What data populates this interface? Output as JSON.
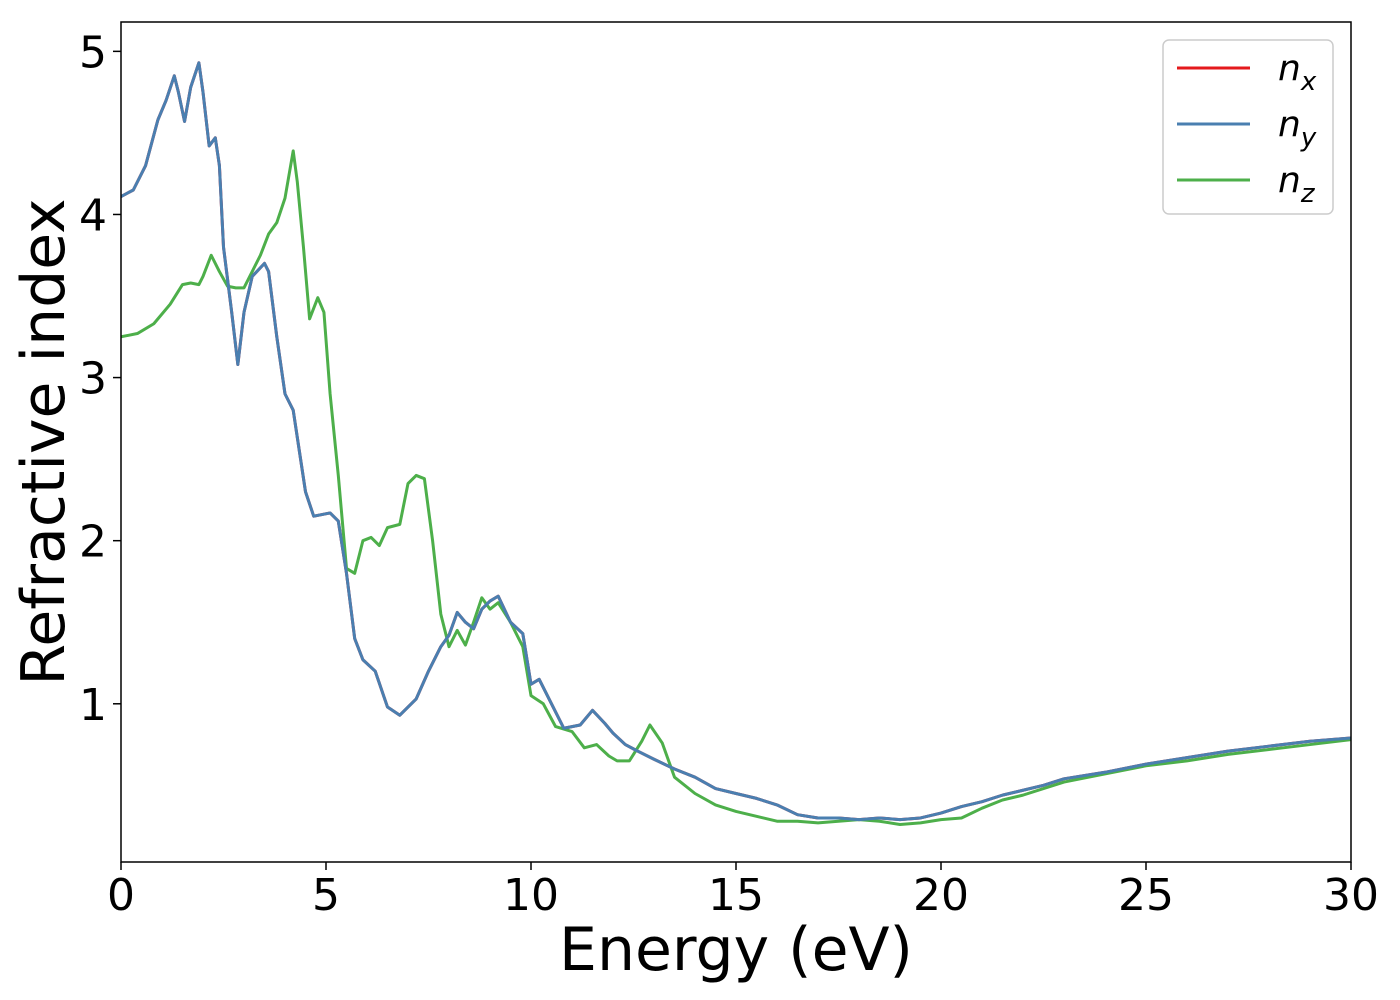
{
  "chart_data": {
    "type": "line",
    "xlabel": "Energy (eV)",
    "ylabel": "Refractive index",
    "xlim": [
      0,
      30
    ],
    "ylim": [
      0.03,
      5.18
    ],
    "xticks": [
      0,
      5,
      10,
      15,
      20,
      25,
      30
    ],
    "yticks": [
      1,
      2,
      3,
      4,
      5
    ],
    "grid": false,
    "legend_position": "top-right",
    "series": [
      {
        "name": "n_x",
        "name_base": "n",
        "name_sub": "x",
        "color": "#e41a1c",
        "x": [
          0,
          0.3,
          0.6,
          0.9,
          1.1,
          1.3,
          1.4,
          1.55,
          1.7,
          1.9,
          2.0,
          2.15,
          2.3,
          2.4,
          2.5,
          2.7,
          2.85,
          3.0,
          3.2,
          3.5,
          3.6,
          3.8,
          4.0,
          4.2,
          4.35,
          4.5,
          4.7,
          4.9,
          5.1,
          5.3,
          5.5,
          5.7,
          5.9,
          6.2,
          6.5,
          6.8,
          7.2,
          7.5,
          7.8,
          8.0,
          8.2,
          8.4,
          8.6,
          8.8,
          9.0,
          9.2,
          9.5,
          9.8,
          10.0,
          10.2,
          10.5,
          10.8,
          11.0,
          11.2,
          11.5,
          11.8,
          12.0,
          12.3,
          12.6,
          13.0,
          13.5,
          14.0,
          14.5,
          15.0,
          15.5,
          16.0,
          16.5,
          17.0,
          17.5,
          18.0,
          18.5,
          19.0,
          19.5,
          20.0,
          20.5,
          21.0,
          21.5,
          22.0,
          22.5,
          23.0,
          24.0,
          25.0,
          26.0,
          27.0,
          28.0,
          29.0,
          30.0
        ],
        "values": [
          4.11,
          4.15,
          4.3,
          4.58,
          4.7,
          4.85,
          4.75,
          4.57,
          4.78,
          4.93,
          4.75,
          4.42,
          4.47,
          4.3,
          3.8,
          3.4,
          3.08,
          3.4,
          3.62,
          3.7,
          3.65,
          3.25,
          2.9,
          2.8,
          2.55,
          2.3,
          2.15,
          2.16,
          2.17,
          2.12,
          1.8,
          1.4,
          1.27,
          1.2,
          0.98,
          0.93,
          1.03,
          1.2,
          1.35,
          1.42,
          1.56,
          1.5,
          1.46,
          1.58,
          1.63,
          1.66,
          1.5,
          1.43,
          1.12,
          1.15,
          1.0,
          0.85,
          0.86,
          0.87,
          0.96,
          0.88,
          0.82,
          0.75,
          0.71,
          0.66,
          0.6,
          0.55,
          0.48,
          0.45,
          0.42,
          0.38,
          0.32,
          0.3,
          0.3,
          0.29,
          0.3,
          0.29,
          0.3,
          0.33,
          0.37,
          0.4,
          0.44,
          0.47,
          0.5,
          0.54,
          0.58,
          0.63,
          0.67,
          0.71,
          0.74,
          0.77,
          0.79
        ]
      },
      {
        "name": "n_y",
        "name_base": "n",
        "name_sub": "y",
        "color": "#4a7fb0",
        "x": [
          0,
          0.3,
          0.6,
          0.9,
          1.1,
          1.3,
          1.4,
          1.55,
          1.7,
          1.9,
          2.0,
          2.15,
          2.3,
          2.4,
          2.5,
          2.7,
          2.85,
          3.0,
          3.2,
          3.5,
          3.6,
          3.8,
          4.0,
          4.2,
          4.35,
          4.5,
          4.7,
          4.9,
          5.1,
          5.3,
          5.5,
          5.7,
          5.9,
          6.2,
          6.5,
          6.8,
          7.2,
          7.5,
          7.8,
          8.0,
          8.2,
          8.4,
          8.6,
          8.8,
          9.0,
          9.2,
          9.5,
          9.8,
          10.0,
          10.2,
          10.5,
          10.8,
          11.0,
          11.2,
          11.5,
          11.8,
          12.0,
          12.3,
          12.6,
          13.0,
          13.5,
          14.0,
          14.5,
          15.0,
          15.5,
          16.0,
          16.5,
          17.0,
          17.5,
          18.0,
          18.5,
          19.0,
          19.5,
          20.0,
          20.5,
          21.0,
          21.5,
          22.0,
          22.5,
          23.0,
          24.0,
          25.0,
          26.0,
          27.0,
          28.0,
          29.0,
          30.0
        ],
        "values": [
          4.11,
          4.15,
          4.3,
          4.58,
          4.7,
          4.85,
          4.75,
          4.57,
          4.78,
          4.93,
          4.75,
          4.42,
          4.47,
          4.3,
          3.8,
          3.4,
          3.08,
          3.4,
          3.62,
          3.7,
          3.65,
          3.25,
          2.9,
          2.8,
          2.55,
          2.3,
          2.15,
          2.16,
          2.17,
          2.12,
          1.8,
          1.4,
          1.27,
          1.2,
          0.98,
          0.93,
          1.03,
          1.2,
          1.35,
          1.42,
          1.56,
          1.5,
          1.46,
          1.58,
          1.63,
          1.66,
          1.5,
          1.43,
          1.12,
          1.15,
          1.0,
          0.85,
          0.86,
          0.87,
          0.96,
          0.88,
          0.82,
          0.75,
          0.71,
          0.66,
          0.6,
          0.55,
          0.48,
          0.45,
          0.42,
          0.38,
          0.32,
          0.3,
          0.3,
          0.29,
          0.3,
          0.29,
          0.3,
          0.33,
          0.37,
          0.4,
          0.44,
          0.47,
          0.5,
          0.54,
          0.58,
          0.63,
          0.67,
          0.71,
          0.74,
          0.77,
          0.79
        ]
      },
      {
        "name": "n_z",
        "name_base": "n",
        "name_sub": "z",
        "color": "#4daf4a",
        "x": [
          0,
          0.4,
          0.8,
          1.2,
          1.5,
          1.7,
          1.9,
          2.0,
          2.2,
          2.4,
          2.6,
          2.8,
          3.0,
          3.2,
          3.4,
          3.6,
          3.8,
          4.0,
          4.2,
          4.3,
          4.45,
          4.6,
          4.8,
          4.95,
          5.1,
          5.3,
          5.5,
          5.7,
          5.9,
          6.1,
          6.3,
          6.5,
          6.8,
          7.0,
          7.2,
          7.4,
          7.6,
          7.8,
          8.0,
          8.2,
          8.4,
          8.6,
          8.8,
          9.0,
          9.2,
          9.5,
          9.8,
          10.0,
          10.3,
          10.6,
          11.0,
          11.3,
          11.6,
          11.9,
          12.1,
          12.4,
          12.7,
          12.9,
          13.2,
          13.5,
          14.0,
          14.5,
          15.0,
          15.5,
          16.0,
          16.5,
          17.0,
          17.5,
          18.0,
          18.5,
          19.0,
          19.5,
          20.0,
          20.5,
          21.0,
          21.5,
          22.0,
          22.5,
          23.0,
          24.0,
          25.0,
          26.0,
          27.0,
          28.0,
          29.0,
          30.0
        ],
        "values": [
          3.25,
          3.27,
          3.33,
          3.45,
          3.57,
          3.58,
          3.57,
          3.62,
          3.75,
          3.65,
          3.56,
          3.55,
          3.55,
          3.65,
          3.75,
          3.88,
          3.95,
          4.1,
          4.39,
          4.2,
          3.8,
          3.36,
          3.49,
          3.4,
          2.9,
          2.4,
          1.83,
          1.8,
          2.0,
          2.02,
          1.97,
          2.08,
          2.1,
          2.35,
          2.4,
          2.38,
          2.0,
          1.55,
          1.35,
          1.45,
          1.36,
          1.5,
          1.65,
          1.58,
          1.62,
          1.5,
          1.35,
          1.05,
          1.0,
          0.86,
          0.83,
          0.73,
          0.75,
          0.68,
          0.65,
          0.65,
          0.77,
          0.87,
          0.76,
          0.55,
          0.45,
          0.38,
          0.34,
          0.31,
          0.28,
          0.28,
          0.27,
          0.28,
          0.29,
          0.28,
          0.26,
          0.27,
          0.29,
          0.3,
          0.36,
          0.41,
          0.44,
          0.48,
          0.52,
          0.57,
          0.62,
          0.65,
          0.69,
          0.72,
          0.75,
          0.78
        ]
      }
    ]
  }
}
